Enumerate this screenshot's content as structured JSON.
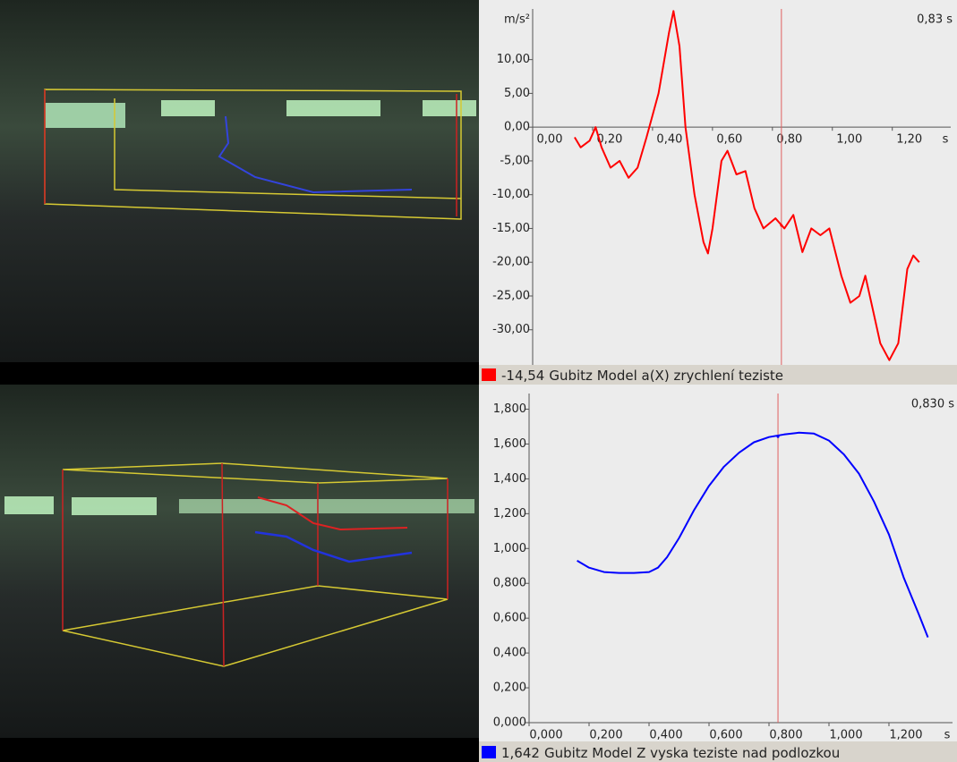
{
  "chart_data": [
    {
      "type": "line",
      "y_unit": "m/s²",
      "x_unit": "s",
      "cursor": {
        "value": 0.83,
        "label": "0,83 s"
      },
      "xlim": [
        0,
        1.395
      ],
      "ylim": [
        -35.2,
        17.5
      ],
      "xticks": [
        {
          "value": 0,
          "label": "0,00"
        },
        {
          "value": 0.2,
          "label": "0,20"
        },
        {
          "value": 0.4,
          "label": "0,40"
        },
        {
          "value": 0.6,
          "label": "0,60"
        },
        {
          "value": 0.8,
          "label": "0,80"
        },
        {
          "value": 1,
          "label": "1,00"
        },
        {
          "value": 1.2,
          "label": "1,20"
        }
      ],
      "yticks": [
        {
          "value": -30,
          "label": "-30,00"
        },
        {
          "value": -25,
          "label": "-25,00"
        },
        {
          "value": -20,
          "label": "-20,00"
        },
        {
          "value": -15,
          "label": "-15,00"
        },
        {
          "value": -10,
          "label": "-10,00"
        },
        {
          "value": -5,
          "label": "-5,00"
        },
        {
          "value": 0,
          "label": "0,00"
        },
        {
          "value": 5,
          "label": "5,00"
        },
        {
          "value": 10,
          "label": "10,00"
        }
      ],
      "x": [
        0.14,
        0.16,
        0.19,
        0.21,
        0.23,
        0.26,
        0.29,
        0.32,
        0.35,
        0.38,
        0.42,
        0.455,
        0.47,
        0.49,
        0.51,
        0.54,
        0.57,
        0.585,
        0.6,
        0.63,
        0.65,
        0.68,
        0.71,
        0.74,
        0.77,
        0.81,
        0.84,
        0.87,
        0.9,
        0.93,
        0.96,
        0.99,
        1.03,
        1.06,
        1.09,
        1.11,
        1.13,
        1.16,
        1.19,
        1.22,
        1.25,
        1.27,
        1.29
      ],
      "series": [
        {
          "name": "Gubitz Model a(X) zrychlení teziste",
          "color": "#ff0000",
          "cursor_value": {
            "value": -14.54,
            "label": "-14,54"
          },
          "values": [
            -1.5,
            -3,
            -2,
            0,
            -3,
            -6,
            -5,
            -7.5,
            -6,
            -1.5,
            5,
            14,
            17.2,
            12,
            0,
            -10,
            -17,
            -18.7,
            -15,
            -5,
            -3.5,
            -7,
            -6.5,
            -12,
            -15,
            -13.5,
            -15,
            -13,
            -18.5,
            -15,
            -16,
            -15,
            -22,
            -26,
            -25,
            -22,
            -26,
            -32,
            -34.5,
            -32,
            -21,
            -19,
            -20
          ]
        }
      ]
    },
    {
      "type": "line",
      "x_unit": "s",
      "cursor": {
        "value": 0.83,
        "label": "0,830 s"
      },
      "xlim": [
        0,
        1.412
      ],
      "ylim": [
        0,
        1.89
      ],
      "xticks": [
        {
          "value": 0,
          "label": "0,000"
        },
        {
          "value": 0.2,
          "label": "0,200"
        },
        {
          "value": 0.4,
          "label": "0,400"
        },
        {
          "value": 0.6,
          "label": "0,600"
        },
        {
          "value": 0.8,
          "label": "0,800"
        },
        {
          "value": 1,
          "label": "1,000"
        },
        {
          "value": 1.2,
          "label": "1,200"
        }
      ],
      "yticks": [
        {
          "value": 0,
          "label": "0,000"
        },
        {
          "value": 0.2,
          "label": "0,200"
        },
        {
          "value": 0.4,
          "label": "0,400"
        },
        {
          "value": 0.6,
          "label": "0,600"
        },
        {
          "value": 0.8,
          "label": "0,800"
        },
        {
          "value": 1,
          "label": "1,000"
        },
        {
          "value": 1.2,
          "label": "1,200"
        },
        {
          "value": 1.4,
          "label": "1,400"
        },
        {
          "value": 1.6,
          "label": "1,600"
        },
        {
          "value": 1.8,
          "label": "1,800"
        }
      ],
      "x": [
        0.16,
        0.2,
        0.25,
        0.3,
        0.35,
        0.4,
        0.43,
        0.46,
        0.5,
        0.55,
        0.6,
        0.65,
        0.7,
        0.75,
        0.8,
        0.85,
        0.9,
        0.95,
        1,
        1.05,
        1.1,
        1.15,
        1.2,
        1.25,
        1.3,
        1.33
      ],
      "series": [
        {
          "name": "Gubitz Model Z vyska teziste nad podlozkou",
          "color": "#0000ff",
          "cursor_value": {
            "value": 1.642,
            "label": "1,642"
          },
          "values": [
            0.93,
            0.89,
            0.865,
            0.86,
            0.86,
            0.865,
            0.89,
            0.95,
            1.06,
            1.22,
            1.36,
            1.47,
            1.55,
            1.61,
            1.64,
            1.655,
            1.665,
            1.66,
            1.62,
            1.54,
            1.43,
            1.27,
            1.08,
            0.83,
            0.62,
            0.49
          ]
        }
      ]
    }
  ]
}
